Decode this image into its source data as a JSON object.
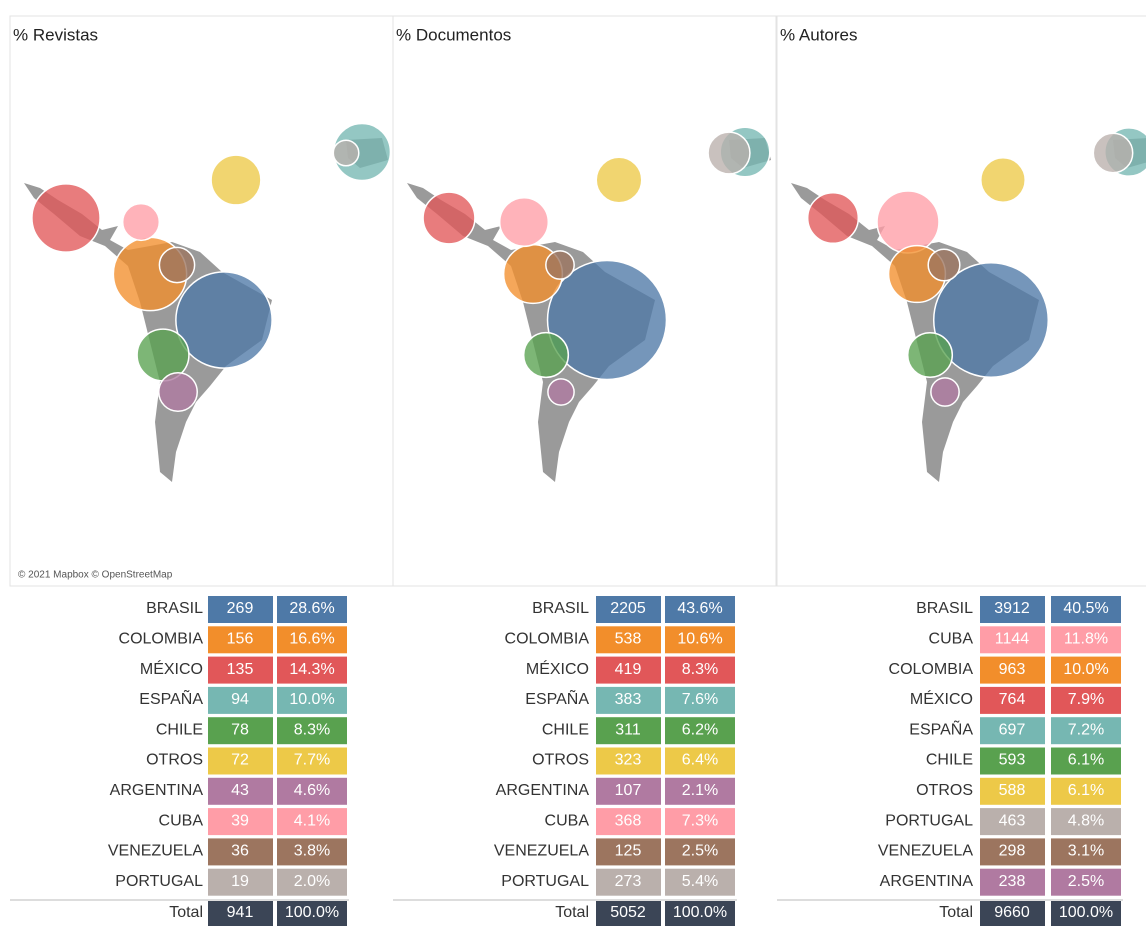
{
  "panels": [
    {
      "title": "% Revistas",
      "attribution": "© 2021 Mapbox © OpenStreetMap",
      "rows": [
        {
          "country": "BRASIL",
          "count": 269,
          "percent": "28.6%",
          "color": "#4e79a7"
        },
        {
          "country": "COLOMBIA",
          "count": 156,
          "percent": "16.6%",
          "color": "#f28e2b"
        },
        {
          "country": "MÉXICO",
          "count": 135,
          "percent": "14.3%",
          "color": "#e15759"
        },
        {
          "country": "ESPAÑA",
          "count": 94,
          "percent": "10.0%",
          "color": "#76b7b2"
        },
        {
          "country": "CHILE",
          "count": 78,
          "percent": "8.3%",
          "color": "#59a14f"
        },
        {
          "country": "OTROS",
          "count": 72,
          "percent": "7.7%",
          "color": "#edc948"
        },
        {
          "country": "ARGENTINA",
          "count": 43,
          "percent": "4.6%",
          "color": "#b07aa1"
        },
        {
          "country": "CUBA",
          "count": 39,
          "percent": "4.1%",
          "color": "#ff9da7"
        },
        {
          "country": "VENEZUELA",
          "count": 36,
          "percent": "3.8%",
          "color": "#9c755f"
        },
        {
          "country": "PORTUGAL",
          "count": 19,
          "percent": "2.0%",
          "color": "#bab0ac"
        }
      ],
      "total": {
        "label": "Total",
        "count": 941,
        "percent": "100.0%"
      }
    },
    {
      "title": "% Documentos",
      "rows": [
        {
          "country": "BRASIL",
          "count": 2205,
          "percent": "43.6%",
          "color": "#4e79a7"
        },
        {
          "country": "COLOMBIA",
          "count": 538,
          "percent": "10.6%",
          "color": "#f28e2b"
        },
        {
          "country": "MÉXICO",
          "count": 419,
          "percent": "8.3%",
          "color": "#e15759"
        },
        {
          "country": "ESPAÑA",
          "count": 383,
          "percent": "7.6%",
          "color": "#76b7b2"
        },
        {
          "country": "CHILE",
          "count": 311,
          "percent": "6.2%",
          "color": "#59a14f"
        },
        {
          "country": "OTROS",
          "count": 323,
          "percent": "6.4%",
          "color": "#edc948"
        },
        {
          "country": "ARGENTINA",
          "count": 107,
          "percent": "2.1%",
          "color": "#b07aa1"
        },
        {
          "country": "CUBA",
          "count": 368,
          "percent": "7.3%",
          "color": "#ff9da7"
        },
        {
          "country": "VENEZUELA",
          "count": 125,
          "percent": "2.5%",
          "color": "#9c755f"
        },
        {
          "country": "PORTUGAL",
          "count": 273,
          "percent": "5.4%",
          "color": "#bab0ac"
        }
      ],
      "total": {
        "label": "Total",
        "count": 5052,
        "percent": "100.0%"
      }
    },
    {
      "title": "% Autores",
      "rows": [
        {
          "country": "BRASIL",
          "count": 3912,
          "percent": "40.5%",
          "color": "#4e79a7"
        },
        {
          "country": "CUBA",
          "count": 1144,
          "percent": "11.8%",
          "color": "#ff9da7"
        },
        {
          "country": "COLOMBIA",
          "count": 963,
          "percent": "10.0%",
          "color": "#f28e2b"
        },
        {
          "country": "MÉXICO",
          "count": 764,
          "percent": "7.9%",
          "color": "#e15759"
        },
        {
          "country": "ESPAÑA",
          "count": 697,
          "percent": "7.2%",
          "color": "#76b7b2"
        },
        {
          "country": "CHILE",
          "count": 593,
          "percent": "6.1%",
          "color": "#59a14f"
        },
        {
          "country": "OTROS",
          "count": 588,
          "percent": "6.1%",
          "color": "#edc948"
        },
        {
          "country": "PORTUGAL",
          "count": 463,
          "percent": "4.8%",
          "color": "#bab0ac"
        },
        {
          "country": "VENEZUELA",
          "count": 298,
          "percent": "3.1%",
          "color": "#9c755f"
        },
        {
          "country": "ARGENTINA",
          "count": 238,
          "percent": "2.5%",
          "color": "#b07aa1"
        }
      ],
      "total": {
        "label": "Total",
        "count": 9660,
        "percent": "100.0%"
      }
    }
  ]
}
